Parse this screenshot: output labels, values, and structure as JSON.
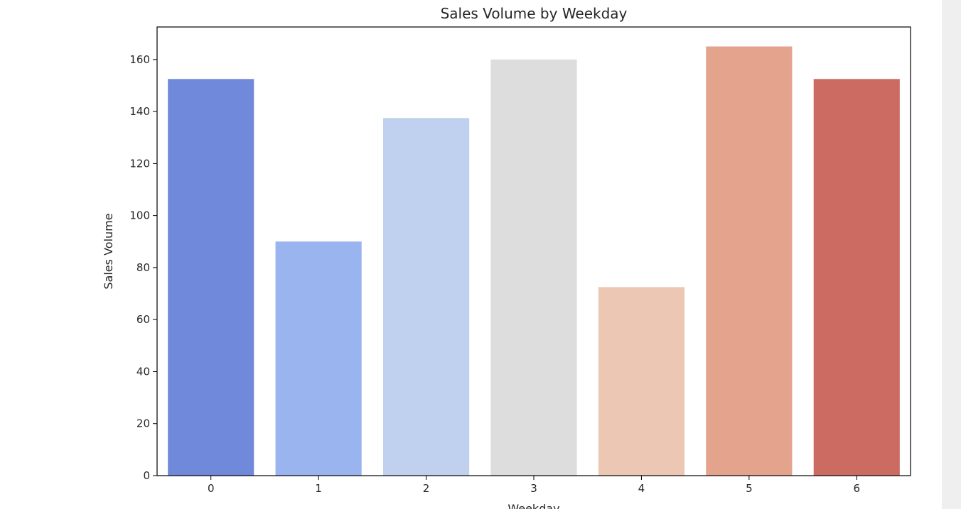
{
  "chart_data": {
    "type": "bar",
    "title": "Sales Volume by Weekday",
    "xlabel": "Weekday",
    "ylabel": "Sales Volume",
    "categories": [
      "0",
      "1",
      "2",
      "3",
      "4",
      "5",
      "6"
    ],
    "values": [
      152.5,
      90,
      137.5,
      160,
      72.5,
      165,
      152.5
    ],
    "colors": [
      "#7189da",
      "#9ab4f0",
      "#c0d1f0",
      "#dddddd",
      "#ecc7b4",
      "#e4a38c",
      "#cc6b61"
    ],
    "ylim": [
      0,
      172.5
    ],
    "yticks": [
      0,
      20,
      40,
      60,
      80,
      100,
      120,
      140,
      160
    ],
    "grid": false,
    "legend": "none"
  }
}
